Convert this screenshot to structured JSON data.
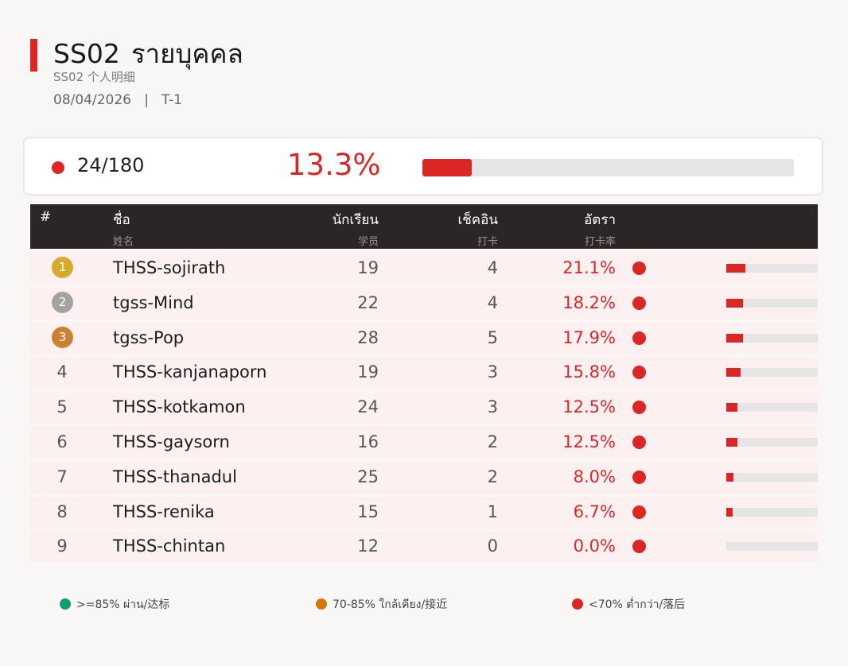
{
  "header": {
    "title_code": "SS02",
    "title_text": "รายบุคคล",
    "subtitle": "SS02  个人明细",
    "date": "08/04/2026",
    "separator": "|",
    "period": "T-1"
  },
  "summary": {
    "count": "24/180",
    "rate": "13.3%",
    "rate_value": 13.3,
    "status_color": "#dc2626"
  },
  "table": {
    "headers": [
      {
        "th": "#",
        "zh": ""
      },
      {
        "th": "ชื่อ",
        "zh": "姓名"
      },
      {
        "th": "นักเรียน",
        "zh": "学员"
      },
      {
        "th": "เช็คอิน",
        "zh": "打卡"
      },
      {
        "th": "อัตรา",
        "zh": "打卡率"
      }
    ],
    "rows": [
      {
        "rank": "1",
        "name": "THSS-sojirath",
        "students": "19",
        "checkins": "4",
        "rate": "21.1%",
        "rate_value": 21.1,
        "medal": "gold"
      },
      {
        "rank": "2",
        "name": "tgss-Mind",
        "students": "22",
        "checkins": "4",
        "rate": "18.2%",
        "rate_value": 18.2,
        "medal": "silver"
      },
      {
        "rank": "3",
        "name": "tgss-Pop",
        "students": "28",
        "checkins": "5",
        "rate": "17.9%",
        "rate_value": 17.9,
        "medal": "bronze"
      },
      {
        "rank": "4",
        "name": "THSS-kanjanaporn",
        "students": "19",
        "checkins": "3",
        "rate": "15.8%",
        "rate_value": 15.8,
        "medal": ""
      },
      {
        "rank": "5",
        "name": "THSS-kotkamon",
        "students": "24",
        "checkins": "3",
        "rate": "12.5%",
        "rate_value": 12.5,
        "medal": ""
      },
      {
        "rank": "6",
        "name": "THSS-gaysorn",
        "students": "16",
        "checkins": "2",
        "rate": "12.5%",
        "rate_value": 12.5,
        "medal": ""
      },
      {
        "rank": "7",
        "name": "THSS-thanadul",
        "students": "25",
        "checkins": "2",
        "rate": "8.0%",
        "rate_value": 8.0,
        "medal": ""
      },
      {
        "rank": "8",
        "name": "THSS-renika",
        "students": "15",
        "checkins": "1",
        "rate": "6.7%",
        "rate_value": 6.7,
        "medal": ""
      },
      {
        "rank": "9",
        "name": "THSS-chintan",
        "students": "12",
        "checkins": "0",
        "rate": "0.0%",
        "rate_value": 0.0,
        "medal": ""
      }
    ]
  },
  "legend": [
    {
      "label": ">=85% ผ่าน/达标",
      "color": "#0f9d72"
    },
    {
      "label": "70-85% ใกล้เคียง/接近",
      "color": "#d97706"
    },
    {
      "label": "<70% ต่ำกว่า/落后",
      "color": "#dc2626"
    }
  ],
  "colors": {
    "accent": "#dc2626",
    "gold": "#d4ac2b",
    "silver": "#a3a3a3",
    "bronze": "#cd7f32",
    "track": "#e5e5e5"
  }
}
